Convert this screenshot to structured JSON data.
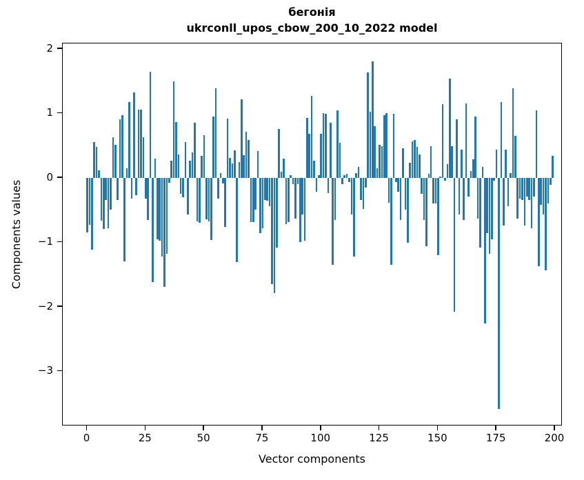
{
  "figure": {
    "title_line1": "бегонія",
    "title_line2": "ukrconll_upos_cbow_200_10_2022 model",
    "xlabel": "Vector components",
    "ylabel": "Components values",
    "bar_color": "#1f77b4",
    "axis_color": "#000000",
    "background_color": "#ffffff"
  },
  "chart_data": {
    "type": "bar",
    "title": "бегонія\nukrconll_upos_cbow_200_10_2022 model",
    "xlabel": "Vector components",
    "ylabel": "Components values",
    "x_start": 0,
    "x_step": 1,
    "n_bars": 200,
    "xticks": [
      0,
      25,
      50,
      75,
      100,
      125,
      150,
      175,
      200
    ],
    "yticks": [
      2,
      1,
      0,
      -1,
      -2,
      -3
    ],
    "xlim": [
      -10.45,
      209.45
    ],
    "ylim": [
      -3.85,
      2.086
    ],
    "grid": false,
    "legend": null,
    "values": [
      -0.84,
      -0.73,
      -1.11,
      0.56,
      0.48,
      0.12,
      -0.66,
      -0.79,
      -0.34,
      -0.78,
      -0.49,
      0.63,
      0.51,
      -0.34,
      0.91,
      0.97,
      -1.29,
      0.15,
      1.18,
      -0.32,
      1.33,
      -0.27,
      1.06,
      1.06,
      0.63,
      -0.32,
      -0.65,
      1.65,
      -1.62,
      0.3,
      -0.95,
      -0.97,
      -1.22,
      -1.69,
      -1.18,
      -0.08,
      0.27,
      1.5,
      0.87,
      0.36,
      -0.25,
      -0.3,
      0.56,
      -0.57,
      0.27,
      0.4,
      0.86,
      -0.67,
      -0.69,
      0.34,
      0.66,
      -0.64,
      -0.67,
      -0.96,
      0.95,
      1.39,
      -0.32,
      0.08,
      -0.09,
      -0.76,
      0.92,
      0.31,
      0.22,
      0.43,
      -1.31,
      0.25,
      1.22,
      0.35,
      0.72,
      0.59,
      -0.68,
      -0.68,
      -0.49,
      0.42,
      -0.86,
      -0.78,
      -0.34,
      -0.35,
      -0.44,
      -1.65,
      -1.79,
      -1.08,
      0.76,
      0.1,
      0.3,
      -0.72,
      -0.68,
      0.04,
      -0.1,
      -0.63,
      -0.1,
      -0.99,
      -0.57,
      -0.97,
      0.93,
      0.68,
      1.27,
      0.27,
      -0.21,
      0.04,
      0.68,
      1.01,
      1.0,
      -0.23,
      0.86,
      -1.35,
      -0.65,
      1.05,
      0.55,
      -0.1,
      0.04,
      0.06,
      -0.06,
      -0.57,
      -1.22,
      0.08,
      0.17,
      -0.34,
      -0.48,
      -0.15,
      1.64,
      1.03,
      1.81,
      0.8,
      0.15,
      0.51,
      0.49,
      0.97,
      1.01,
      -0.38,
      -1.35,
      0.99,
      -0.06,
      -0.21,
      -0.65,
      0.46,
      -0.49,
      -1.01,
      0.23,
      0.57,
      0.59,
      0.48,
      0.36,
      -0.25,
      -0.65,
      -1.06,
      0.06,
      0.49,
      -0.4,
      -0.4,
      -1.2,
      0.02,
      1.14,
      -0.04,
      0.21,
      1.54,
      0.49,
      -2.07,
      0.91,
      -0.57,
      0.44,
      -0.65,
      1.16,
      -0.29,
      0.11,
      0.29,
      0.95,
      -0.63,
      -1.08,
      0.17,
      -2.26,
      -0.86,
      -1.18,
      -0.95,
      -0.04,
      0.44,
      -3.58,
      1.18,
      -0.74,
      0.44,
      -0.44,
      0.08,
      1.39,
      0.65,
      -0.63,
      -0.32,
      -0.34,
      -0.74,
      -0.29,
      -0.34,
      -0.78,
      -0.29,
      1.05,
      -1.37,
      -0.42,
      -0.57,
      -1.43,
      -0.4,
      -0.11,
      0.34
    ]
  }
}
